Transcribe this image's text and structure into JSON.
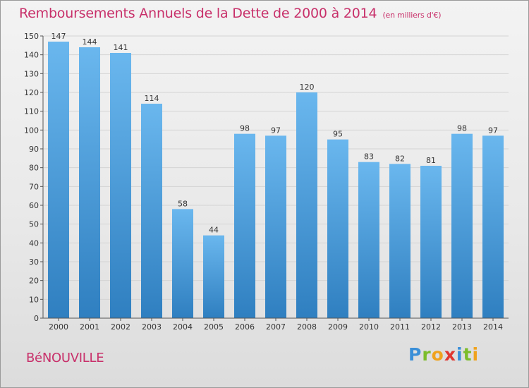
{
  "title": "Remboursements Annuels de la Dette de 2000 à 2014",
  "subtitle": "(en milliers d'€)",
  "commune": "BéNOUVILLE",
  "logo": {
    "parts": [
      "P",
      "r",
      "o",
      "x",
      "i",
      "t",
      "i"
    ],
    "colors": [
      "#3a8fd8",
      "#7cbd2a",
      "#f0a21c",
      "#e0362f",
      "#3a8fd8",
      "#7cbd2a",
      "#f0a21c"
    ]
  },
  "colors": {
    "title": "#c8306a",
    "bar_top": "#6ab7ee",
    "bar_bottom": "#2f7fc0",
    "grid": "#d4d4d4",
    "axis_text": "#333333"
  },
  "chart_data": {
    "type": "bar",
    "categories": [
      "2000",
      "2001",
      "2002",
      "2003",
      "2004",
      "2005",
      "2006",
      "2007",
      "2008",
      "2009",
      "2010",
      "2011",
      "2012",
      "2013",
      "2014"
    ],
    "values": [
      147,
      144,
      141,
      114,
      58,
      44,
      98,
      97,
      120,
      95,
      83,
      82,
      81,
      98,
      97
    ],
    "title": "Remboursements Annuels de la Dette de 2000 à 2014",
    "subtitle": "(en milliers d'€)",
    "xlabel": "",
    "ylabel": "",
    "ylim": [
      0,
      150
    ],
    "yticks": [
      0,
      10,
      20,
      30,
      40,
      50,
      60,
      70,
      80,
      90,
      100,
      110,
      120,
      130,
      140,
      150
    ],
    "grid": true,
    "legend": "none"
  }
}
